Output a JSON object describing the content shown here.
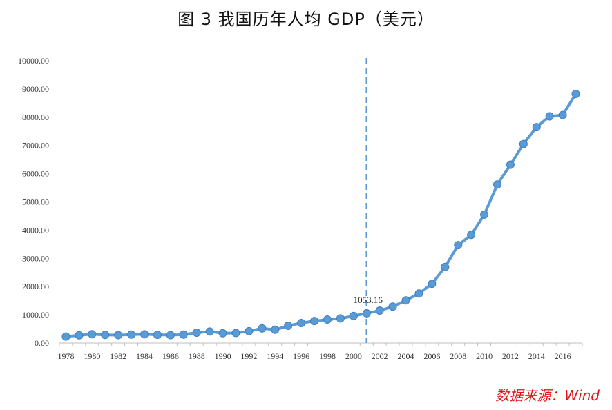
{
  "chart_data": {
    "type": "line",
    "title": "图 3   我国历年人均 GDP（美元）",
    "xlabel": "",
    "ylabel": "",
    "x": [
      1978,
      1979,
      1980,
      1981,
      1982,
      1983,
      1984,
      1985,
      1986,
      1987,
      1988,
      1989,
      1990,
      1991,
      1992,
      1993,
      1994,
      1995,
      1996,
      1997,
      1998,
      1999,
      2000,
      2001,
      2002,
      2003,
      2004,
      2005,
      2006,
      2007,
      2008,
      2009,
      2010,
      2011,
      2012,
      2013,
      2014,
      2015,
      2016,
      2017
    ],
    "x_tick_labels": [
      "1978",
      "1980",
      "1982",
      "1984",
      "1986",
      "1988",
      "1990",
      "1992",
      "1994",
      "1996",
      "1998",
      "2000",
      "2002",
      "2004",
      "2006",
      "2008",
      "2010",
      "2012",
      "2014",
      "2016"
    ],
    "ylim": [
      0,
      10000
    ],
    "y_tick_labels": [
      "0.00",
      "1000.00",
      "2000.00",
      "3000.00",
      "4000.00",
      "5000.00",
      "6000.00",
      "7000.00",
      "8000.00",
      "9000.00",
      "10000.00"
    ],
    "series": [
      {
        "values": [
          229,
          275,
          312,
          288,
          281,
          298,
          310,
          294,
          281,
          300,
          368,
          408,
          347,
          356,
          420,
          520,
          470,
          610,
          710,
          780,
          830,
          870,
          959,
          1053,
          1149,
          1289,
          1509,
          1753,
          2099,
          2694,
          3468,
          3832,
          4550,
          5618,
          6317,
          7051,
          7651,
          8033,
          8079,
          8827
        ]
      }
    ],
    "annotation": {
      "x": 2001,
      "text": "1053.16"
    },
    "grid": false,
    "legend": "none",
    "line_color": "#5b9bd5",
    "marker_line_color": "#3d7fbf",
    "source": "数据来源：Wind"
  }
}
